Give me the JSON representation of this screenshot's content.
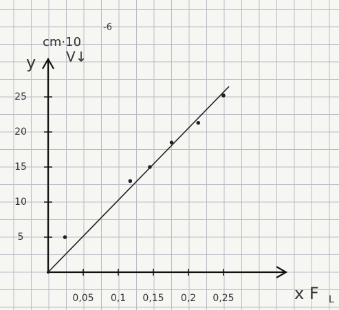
{
  "chart_data": {
    "type": "scatter",
    "y_label": {
      "symbol": "y",
      "unit": "cm·10",
      "exponent": "-6",
      "note": "V↓"
    },
    "x_label": {
      "symbol": "x F",
      "subscript": "L"
    },
    "points": {
      "x": [
        0.024,
        0.117,
        0.145,
        0.176,
        0.214,
        0.25
      ],
      "y": [
        5,
        13,
        15,
        18.5,
        21.3,
        25.2
      ],
      "color": "#222222"
    },
    "fit_line": {
      "x": [
        0,
        0.258
      ],
      "y": [
        0,
        26.5
      ],
      "color": "#222222"
    },
    "xlim": [
      0,
      0.34
    ],
    "ylim": [
      0,
      30
    ],
    "xticks": [
      {
        "value": 0.05,
        "label": "0,05"
      },
      {
        "value": 0.1,
        "label": "0,1"
      },
      {
        "value": 0.15,
        "label": "0,15"
      },
      {
        "value": 0.2,
        "label": "0,2"
      },
      {
        "value": 0.25,
        "label": "0,25"
      }
    ],
    "yticks": [
      5,
      10,
      15,
      20,
      25
    ]
  }
}
